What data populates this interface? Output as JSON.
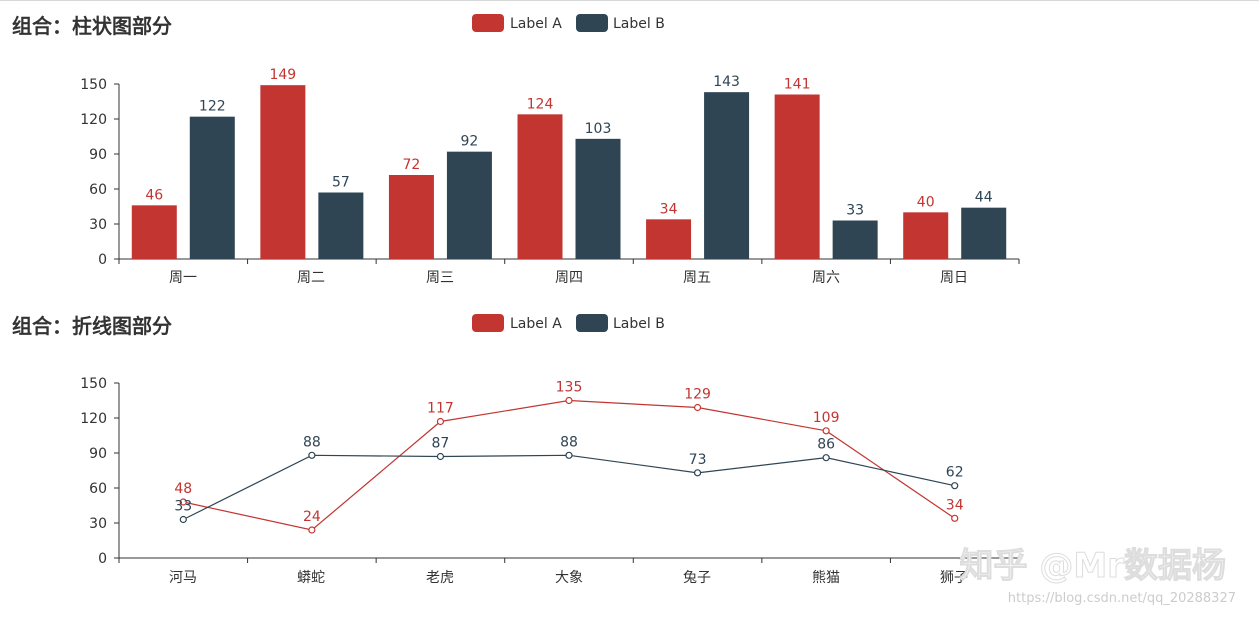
{
  "colors": {
    "label_a": "#c23531",
    "label_b": "#2f4554",
    "axis": "#333333"
  },
  "chart_data": [
    {
      "type": "bar",
      "title": "组合：柱状图部分",
      "categories": [
        "周一",
        "周二",
        "周三",
        "周四",
        "周五",
        "周六",
        "周日"
      ],
      "series": [
        {
          "name": "Label A",
          "values": [
            46,
            149,
            72,
            124,
            34,
            141,
            40
          ]
        },
        {
          "name": "Label B",
          "values": [
            122,
            57,
            92,
            103,
            143,
            33,
            44
          ]
        }
      ],
      "yticks": [
        0,
        30,
        60,
        90,
        120,
        150
      ],
      "ylim": [
        0,
        150
      ],
      "xlabel": "",
      "ylabel": "",
      "legend": "top-center"
    },
    {
      "type": "line",
      "title": "组合：折线图部分",
      "categories": [
        "河马",
        "蟒蛇",
        "老虎",
        "大象",
        "兔子",
        "熊猫",
        "狮子"
      ],
      "series": [
        {
          "name": "Label A",
          "values": [
            48,
            24,
            117,
            135,
            129,
            109,
            34
          ]
        },
        {
          "name": "Label B",
          "values": [
            33,
            88,
            87,
            88,
            73,
            86,
            62
          ]
        }
      ],
      "yticks": [
        0,
        30,
        60,
        90,
        120,
        150
      ],
      "ylim": [
        0,
        150
      ],
      "xlabel": "",
      "ylabel": "",
      "legend": "top-center"
    }
  ],
  "watermark": {
    "main": "知乎 @Mr数据杨",
    "url": "https://blog.csdn.net/qq_20288327"
  }
}
